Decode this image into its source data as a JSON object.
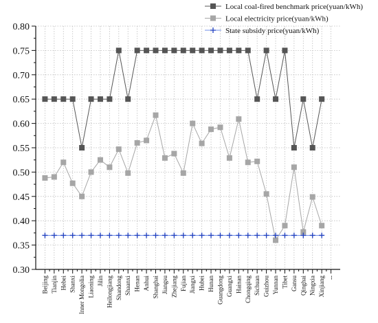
{
  "chart_data": {
    "type": "line",
    "categories": [
      "Beijing",
      "Tianjin",
      "Hebei",
      "Shanxi",
      "Inner Mongolia",
      "Liaoning",
      "Jilin",
      "Heilongjiang",
      "Shandong",
      "Shaanxi",
      "Henan",
      "Anhui",
      "Shanghai",
      "Jiangsu",
      "Zhejiang",
      "Fujian",
      "Jiangxi",
      "Hubei",
      "Hunan",
      "Guangdong",
      "Guangxi",
      "Hainan",
      "Chongqing",
      "Sichuan",
      "Guizhou",
      "Yunnan",
      "Tibet",
      "Gansu",
      "Qinghai",
      "Ningxia",
      "Xinjiang"
    ],
    "extra_category": "--",
    "series": [
      {
        "name": "Local coal-fired benchmark price(yuan/kWh)",
        "color": "#555555",
        "marker": "square",
        "values": [
          0.65,
          0.65,
          0.65,
          0.65,
          0.55,
          0.65,
          0.65,
          0.65,
          0.75,
          0.65,
          0.75,
          0.75,
          0.75,
          0.75,
          0.75,
          0.75,
          0.75,
          0.75,
          0.75,
          0.75,
          0.75,
          0.75,
          0.75,
          0.65,
          0.75,
          0.65,
          0.75,
          0.55,
          0.65,
          0.55,
          0.65
        ]
      },
      {
        "name": "Local electricity price(yuan/kWh)",
        "color": "#a6a6a6",
        "marker": "square",
        "values": [
          0.488,
          0.49,
          0.52,
          0.477,
          0.45,
          0.5,
          0.525,
          0.51,
          0.547,
          0.498,
          0.56,
          0.565,
          0.617,
          0.529,
          0.538,
          0.498,
          0.6,
          0.559,
          0.588,
          0.592,
          0.529,
          0.609,
          0.52,
          0.522,
          0.455,
          0.36,
          0.39,
          0.51,
          0.377,
          0.449,
          0.39
        ]
      },
      {
        "name": "State subsidy price(yuan/kWh)",
        "color": "#1f3fbf",
        "marker": "plus",
        "values": [
          0.37,
          0.37,
          0.37,
          0.37,
          0.37,
          0.37,
          0.37,
          0.37,
          0.37,
          0.37,
          0.37,
          0.37,
          0.37,
          0.37,
          0.37,
          0.37,
          0.37,
          0.37,
          0.37,
          0.37,
          0.37,
          0.37,
          0.37,
          0.37,
          0.37,
          0.37,
          0.37,
          0.37,
          0.37,
          0.37,
          0.37
        ]
      }
    ],
    "yticks": [
      "0.30",
      "0.35",
      "0.40",
      "0.45",
      "0.50",
      "0.55",
      "0.60",
      "0.65",
      "0.70",
      "0.75",
      "0.80"
    ],
    "ylim": [
      0.3,
      0.8
    ],
    "grid": true,
    "legend": "top-right"
  }
}
